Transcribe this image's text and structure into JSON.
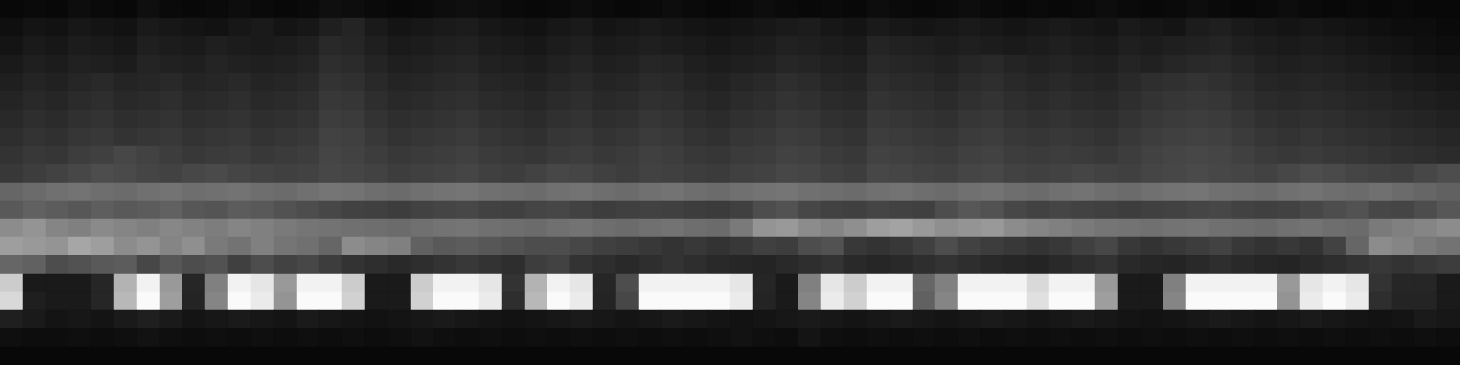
{
  "chart_data": {
    "type": "heatmap",
    "tick_labels": false,
    "color_range": [
      0,
      100
    ],
    "cells": [
      [
        3,
        4,
        3,
        5,
        4,
        3,
        6,
        4,
        3,
        4,
        5,
        4,
        3,
        4,
        6,
        5,
        4,
        3,
        4,
        5,
        6,
        5,
        4,
        3,
        4,
        5,
        4,
        3,
        4,
        5,
        4,
        3,
        4,
        5,
        4,
        3,
        4,
        3,
        5,
        4,
        3,
        4,
        5,
        4,
        3,
        4,
        3,
        4,
        5,
        4,
        3,
        4,
        5,
        4,
        3,
        4,
        5,
        4,
        3,
        4,
        3,
        4,
        3,
        3
      ],
      [
        6,
        8,
        7,
        9,
        8,
        7,
        10,
        9,
        8,
        7,
        9,
        10,
        8,
        9,
        12,
        14,
        10,
        8,
        9,
        10,
        11,
        9,
        8,
        7,
        9,
        10,
        8,
        9,
        10,
        9,
        8,
        7,
        8,
        9,
        10,
        11,
        9,
        8,
        10,
        9,
        8,
        9,
        10,
        9,
        8,
        9,
        10,
        9,
        8,
        10,
        9,
        8,
        11,
        12,
        10,
        9,
        8,
        9,
        8,
        7,
        6,
        5,
        5,
        4
      ],
      [
        8,
        10,
        9,
        11,
        10,
        9,
        12,
        11,
        10,
        12,
        11,
        10,
        11,
        12,
        16,
        15,
        12,
        10,
        11,
        12,
        13,
        11,
        10,
        9,
        11,
        12,
        10,
        11,
        12,
        11,
        10,
        9,
        10,
        11,
        13,
        12,
        11,
        10,
        14,
        13,
        12,
        11,
        12,
        11,
        10,
        11,
        12,
        11,
        10,
        12,
        11,
        12,
        13,
        14,
        12,
        11,
        10,
        11,
        10,
        9,
        8,
        7,
        6,
        5
      ],
      [
        10,
        12,
        11,
        13,
        12,
        11,
        14,
        13,
        12,
        14,
        13,
        12,
        13,
        14,
        18,
        17,
        14,
        12,
        13,
        14,
        15,
        13,
        12,
        11,
        13,
        14,
        12,
        13,
        15,
        14,
        12,
        11,
        12,
        13,
        15,
        14,
        13,
        12,
        16,
        15,
        14,
        13,
        15,
        16,
        14,
        13,
        14,
        13,
        12,
        14,
        13,
        15,
        16,
        17,
        15,
        13,
        12,
        13,
        12,
        11,
        10,
        9,
        8,
        7
      ],
      [
        12,
        14,
        13,
        15,
        16,
        14,
        15,
        16,
        14,
        15,
        16,
        14,
        15,
        16,
        20,
        19,
        16,
        14,
        15,
        16,
        17,
        15,
        14,
        13,
        15,
        16,
        14,
        15,
        17,
        16,
        14,
        13,
        15,
        16,
        18,
        17,
        15,
        14,
        18,
        17,
        16,
        15,
        17,
        18,
        16,
        15,
        16,
        15,
        14,
        16,
        18,
        19,
        20,
        19,
        17,
        15,
        14,
        15,
        14,
        13,
        12,
        11,
        10,
        9
      ],
      [
        14,
        16,
        15,
        17,
        18,
        16,
        17,
        18,
        16,
        17,
        18,
        16,
        17,
        18,
        22,
        21,
        18,
        16,
        17,
        18,
        19,
        17,
        16,
        15,
        17,
        18,
        16,
        17,
        19,
        18,
        16,
        15,
        17,
        18,
        20,
        19,
        17,
        16,
        20,
        19,
        18,
        17,
        19,
        20,
        18,
        17,
        18,
        17,
        16,
        18,
        20,
        21,
        22,
        21,
        19,
        17,
        16,
        17,
        16,
        15,
        14,
        13,
        12,
        11
      ],
      [
        16,
        18,
        17,
        19,
        20,
        18,
        19,
        20,
        18,
        19,
        20,
        18,
        19,
        20,
        24,
        23,
        20,
        18,
        19,
        20,
        21,
        19,
        18,
        17,
        19,
        20,
        18,
        19,
        21,
        20,
        18,
        17,
        19,
        20,
        22,
        21,
        19,
        18,
        22,
        21,
        20,
        19,
        21,
        22,
        20,
        19,
        20,
        19,
        18,
        20,
        22,
        23,
        24,
        23,
        21,
        19,
        18,
        19,
        18,
        17,
        16,
        15,
        14,
        13
      ],
      [
        18,
        20,
        19,
        21,
        22,
        20,
        21,
        22,
        20,
        21,
        22,
        20,
        21,
        22,
        26,
        25,
        22,
        20,
        21,
        22,
        23,
        21,
        20,
        19,
        21,
        22,
        20,
        21,
        23,
        22,
        20,
        19,
        21,
        22,
        24,
        23,
        21,
        20,
        24,
        23,
        22,
        21,
        23,
        24,
        22,
        21,
        22,
        21,
        20,
        22,
        24,
        25,
        26,
        25,
        23,
        21,
        20,
        21,
        20,
        19,
        18,
        17,
        16,
        15
      ],
      [
        20,
        22,
        21,
        24,
        25,
        28,
        26,
        24,
        22,
        23,
        24,
        22,
        23,
        24,
        27,
        26,
        24,
        22,
        23,
        24,
        25,
        23,
        22,
        21,
        23,
        24,
        22,
        23,
        25,
        24,
        22,
        21,
        23,
        24,
        26,
        25,
        23,
        22,
        26,
        25,
        24,
        23,
        25,
        26,
        24,
        23,
        24,
        23,
        22,
        24,
        26,
        27,
        28,
        27,
        25,
        23,
        22,
        23,
        22,
        21,
        20,
        19,
        18,
        17
      ],
      [
        22,
        24,
        26,
        28,
        30,
        29,
        27,
        26,
        28,
        29,
        27,
        26,
        25,
        26,
        28,
        27,
        26,
        24,
        25,
        26,
        27,
        25,
        24,
        26,
        28,
        27,
        25,
        24,
        26,
        25,
        24,
        23,
        25,
        26,
        28,
        27,
        25,
        24,
        28,
        27,
        26,
        25,
        27,
        28,
        26,
        25,
        26,
        27,
        26,
        25,
        27,
        28,
        29,
        28,
        27,
        26,
        28,
        30,
        29,
        27,
        26,
        25,
        28,
        30
      ],
      [
        40,
        42,
        44,
        45,
        43,
        42,
        44,
        45,
        43,
        44,
        45,
        43,
        42,
        44,
        46,
        45,
        43,
        42,
        44,
        45,
        46,
        44,
        43,
        42,
        44,
        45,
        43,
        42,
        44,
        45,
        43,
        42,
        44,
        45,
        46,
        44,
        43,
        42,
        44,
        45,
        43,
        42,
        44,
        45,
        43,
        42,
        44,
        45,
        43,
        42,
        44,
        45,
        46,
        44,
        43,
        42,
        44,
        45,
        43,
        42,
        44,
        42,
        40,
        38
      ],
      [
        35,
        38,
        36,
        34,
        37,
        35,
        36,
        38,
        34,
        33,
        36,
        35,
        32,
        30,
        28,
        26,
        25,
        24,
        26,
        27,
        28,
        26,
        25,
        27,
        28,
        26,
        24,
        25,
        26,
        25,
        24,
        23,
        25,
        30,
        32,
        28,
        26,
        25,
        27,
        26,
        25,
        30,
        34,
        32,
        28,
        26,
        27,
        26,
        25,
        24,
        25,
        26,
        27,
        28,
        26,
        25,
        26,
        28,
        30,
        32,
        28,
        27,
        30,
        34
      ],
      [
        55,
        58,
        52,
        50,
        54,
        52,
        50,
        53,
        51,
        49,
        52,
        50,
        48,
        46,
        45,
        44,
        43,
        42,
        44,
        45,
        46,
        44,
        43,
        42,
        44,
        45,
        43,
        42,
        44,
        45,
        43,
        42,
        48,
        58,
        60,
        55,
        52,
        56,
        62,
        64,
        60,
        56,
        58,
        60,
        55,
        52,
        50,
        48,
        46,
        45,
        44,
        45,
        46,
        44,
        43,
        42,
        44,
        45,
        43,
        42,
        48,
        50,
        52,
        55
      ],
      [
        62,
        60,
        58,
        65,
        62,
        55,
        58,
        52,
        56,
        48,
        45,
        50,
        46,
        44,
        40,
        55,
        52,
        50,
        38,
        35,
        36,
        34,
        32,
        30,
        30,
        28,
        25,
        24,
        22,
        20,
        22,
        20,
        22,
        25,
        24,
        30,
        32,
        22,
        20,
        22,
        25,
        30,
        26,
        24,
        22,
        20,
        22,
        25,
        28,
        22,
        20,
        22,
        24,
        26,
        22,
        20,
        22,
        20,
        26,
        40,
        55,
        52,
        48,
        45
      ],
      [
        40,
        38,
        30,
        32,
        35,
        36,
        28,
        34,
        30,
        32,
        25,
        30,
        26,
        28,
        24,
        20,
        18,
        16,
        18,
        20,
        22,
        20,
        18,
        24,
        26,
        20,
        18,
        16,
        18,
        20,
        18,
        16,
        15,
        14,
        16,
        18,
        20,
        16,
        15,
        16,
        18,
        20,
        18,
        16,
        15,
        14,
        16,
        18,
        20,
        16,
        15,
        14,
        16,
        18,
        16,
        15,
        14,
        16,
        18,
        20,
        22,
        20,
        22,
        24
      ],
      [
        80,
        10,
        10,
        10,
        15,
        70,
        95,
        60,
        15,
        50,
        95,
        90,
        60,
        95,
        95,
        80,
        10,
        10,
        80,
        95,
        95,
        90,
        20,
        70,
        95,
        90,
        15,
        30,
        95,
        95,
        95,
        95,
        90,
        15,
        10,
        50,
        90,
        80,
        95,
        95,
        40,
        50,
        95,
        95,
        95,
        85,
        95,
        95,
        60,
        10,
        10,
        50,
        95,
        95,
        95,
        95,
        60,
        90,
        95,
        90,
        20,
        15,
        15,
        10
      ],
      [
        85,
        12,
        10,
        10,
        15,
        72,
        98,
        62,
        14,
        52,
        98,
        92,
        58,
        98,
        98,
        82,
        10,
        10,
        82,
        98,
        98,
        92,
        18,
        72,
        98,
        92,
        14,
        28,
        98,
        98,
        98,
        98,
        92,
        14,
        10,
        52,
        92,
        82,
        98,
        98,
        38,
        52,
        98,
        98,
        98,
        88,
        98,
        98,
        62,
        10,
        10,
        52,
        98,
        98,
        98,
        98,
        58,
        92,
        98,
        92,
        18,
        14,
        14,
        10
      ],
      [
        12,
        10,
        8,
        9,
        8,
        10,
        12,
        10,
        8,
        9,
        10,
        9,
        8,
        10,
        9,
        8,
        7,
        8,
        9,
        10,
        9,
        8,
        7,
        8,
        9,
        10,
        9,
        8,
        9,
        10,
        9,
        8,
        7,
        8,
        9,
        10,
        9,
        8,
        9,
        10,
        9,
        8,
        9,
        10,
        9,
        8,
        9,
        10,
        9,
        8,
        7,
        8,
        9,
        10,
        9,
        8,
        9,
        10,
        9,
        8,
        7,
        8,
        10,
        9
      ],
      [
        6,
        5,
        5,
        6,
        5,
        6,
        7,
        6,
        5,
        6,
        5,
        6,
        5,
        6,
        5,
        6,
        5,
        6,
        7,
        6,
        5,
        6,
        5,
        6,
        5,
        6,
        5,
        6,
        5,
        6,
        5,
        6,
        7,
        6,
        5,
        8,
        6,
        5,
        6,
        5,
        6,
        5,
        6,
        5,
        6,
        5,
        6,
        5,
        6,
        5,
        6,
        5,
        6,
        5,
        6,
        5,
        6,
        5,
        6,
        5,
        6,
        5,
        6,
        5
      ],
      [
        3,
        3,
        3,
        3,
        3,
        3,
        3,
        3,
        3,
        3,
        3,
        3,
        3,
        3,
        3,
        3,
        3,
        3,
        3,
        3,
        3,
        3,
        3,
        3,
        3,
        3,
        3,
        3,
        3,
        3,
        3,
        3,
        3,
        3,
        3,
        3,
        3,
        3,
        3,
        3,
        3,
        3,
        3,
        3,
        3,
        3,
        3,
        3,
        3,
        3,
        3,
        3,
        3,
        3,
        3,
        3,
        3,
        3,
        3,
        3,
        3,
        3,
        3,
        3
      ]
    ]
  }
}
